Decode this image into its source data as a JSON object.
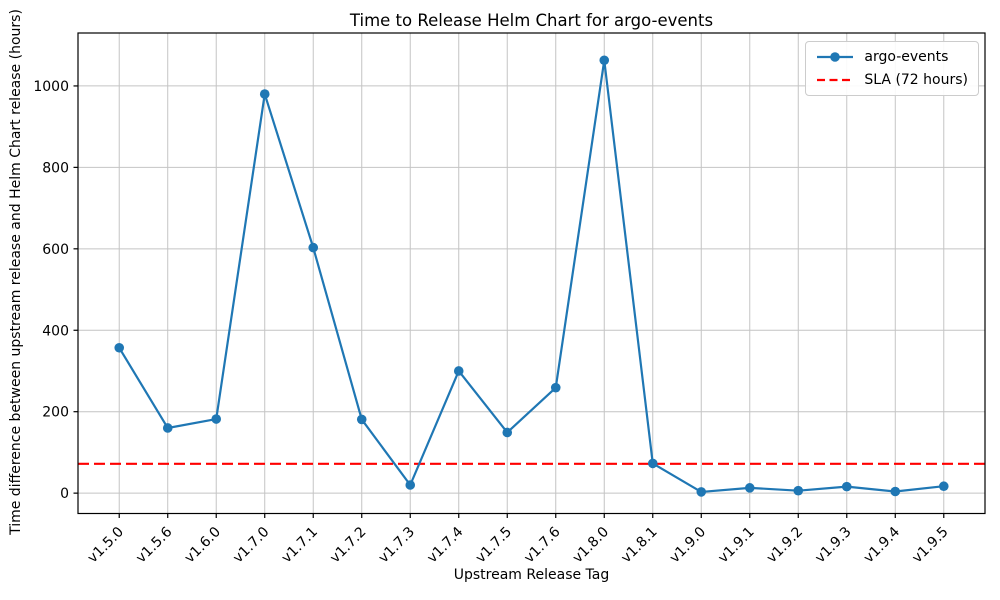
{
  "chart_data": {
    "type": "line",
    "title": "Time to Release Helm Chart for argo-events",
    "xlabel": "Upstream Release Tag",
    "ylabel": "Time difference between upstream release and Helm Chart release (hours)",
    "categories": [
      "v1.5.0",
      "v1.5.6",
      "v1.6.0",
      "v1.7.0",
      "v1.7.1",
      "v1.7.2",
      "v1.7.3",
      "v1.7.4",
      "v1.7.5",
      "v1.7.6",
      "v1.8.0",
      "v1.8.1",
      "v1.9.0",
      "v1.9.1",
      "v1.9.2",
      "v1.9.3",
      "v1.9.4",
      "v1.9.5"
    ],
    "series": [
      {
        "name": "argo-events",
        "color": "#1f77b4",
        "marker": "circle",
        "line_style": "solid",
        "values": [
          357,
          160,
          182,
          980,
          603,
          181,
          20,
          300,
          149,
          259,
          1063,
          73,
          3,
          13,
          6,
          16,
          4,
          17
        ]
      }
    ],
    "reference_line": {
      "label": "SLA (72 hours)",
      "value": 72,
      "color": "#ff0000",
      "line_style": "dashed"
    },
    "yticks": [
      0,
      200,
      400,
      600,
      800,
      1000
    ],
    "ylim": [
      -50,
      1130
    ],
    "grid": true,
    "grid_color": "#c4c4c4",
    "legend_position": "upper right",
    "x_tick_rotation": 45
  }
}
